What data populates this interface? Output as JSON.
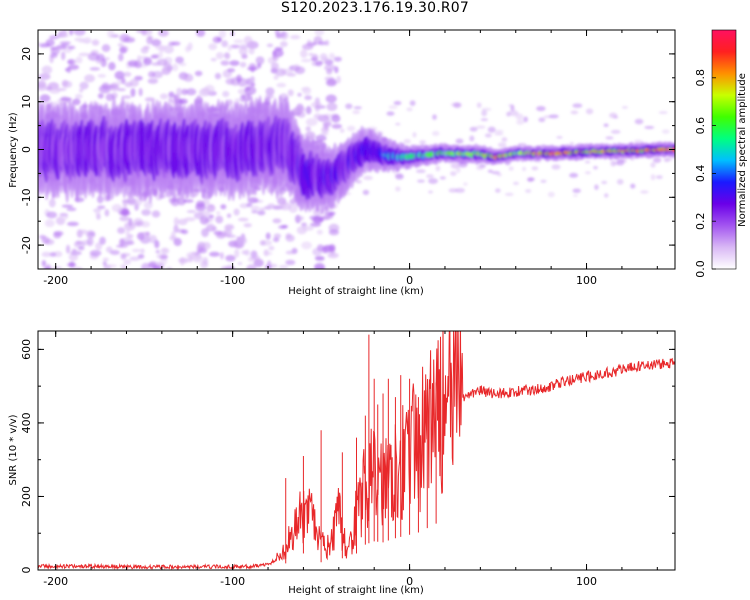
{
  "title": "S120.2023.176.19.30.R07",
  "chart_data": [
    {
      "type": "heatmap",
      "xlabel": "Height of straight line (km)",
      "ylabel": "Frequency (Hz)",
      "xlim": [
        -210,
        150
      ],
      "ylim": [
        -25,
        25
      ],
      "x_ticks": [
        "-200",
        "-100",
        "0",
        "100"
      ],
      "x_tick_values": [
        -200,
        -100,
        0,
        100
      ],
      "y_ticks": [
        "-20",
        "-10",
        "0",
        "10",
        "20"
      ],
      "y_tick_values": [
        -20,
        -10,
        0,
        10,
        20
      ],
      "colorbar": {
        "label": "Normalized spectral amplitude",
        "range": [
          0,
          1
        ],
        "ticks": [
          "0.0",
          "0.2",
          "0.4",
          "0.6",
          "0.8"
        ],
        "tick_values": [
          0,
          0.2,
          0.4,
          0.6,
          0.8
        ],
        "colormap": [
          "#ffffff",
          "#d9b8f5",
          "#a355f0",
          "#6a00e8",
          "#1a1aff",
          "#00bfff",
          "#00ff80",
          "#40ff00",
          "#c8ff00",
          "#ff9000",
          "#ff2020",
          "#ff1060"
        ]
      },
      "ridge": [
        {
          "x": -210,
          "freq": 0.0,
          "amp": 0.22,
          "width": 6
        },
        {
          "x": -150,
          "freq": 0.0,
          "amp": 0.25,
          "width": 6
        },
        {
          "x": -100,
          "freq": 0.0,
          "amp": 0.25,
          "width": 6
        },
        {
          "x": -70,
          "freq": 1.0,
          "amp": 0.27,
          "width": 6
        },
        {
          "x": -60,
          "freq": -5.0,
          "amp": 0.3,
          "width": 5
        },
        {
          "x": -45,
          "freq": -6.0,
          "amp": 0.3,
          "width": 4
        },
        {
          "x": -25,
          "freq": 0.0,
          "amp": 0.3,
          "width": 3
        },
        {
          "x": -10,
          "freq": -1.5,
          "amp": 0.45,
          "width": 2
        },
        {
          "x": 0,
          "freq": -1.5,
          "amp": 0.5,
          "width": 1.5
        },
        {
          "x": 20,
          "freq": -0.8,
          "amp": 0.6,
          "width": 1.2
        },
        {
          "x": 40,
          "freq": -1.0,
          "amp": 0.62,
          "width": 1.2
        },
        {
          "x": 50,
          "freq": -1.6,
          "amp": 0.75,
          "width": 1.0
        },
        {
          "x": 60,
          "freq": -0.8,
          "amp": 0.6,
          "width": 1.0
        },
        {
          "x": 80,
          "freq": -0.8,
          "amp": 0.82,
          "width": 1.0
        },
        {
          "x": 100,
          "freq": -0.5,
          "amp": 0.7,
          "width": 1.0
        },
        {
          "x": 150,
          "freq": 0.0,
          "amp": 0.8,
          "width": 1.0
        }
      ]
    },
    {
      "type": "line",
      "xlabel": "Height of straight line (km)",
      "ylabel": "SNR (10 * v/v)",
      "xlim": [
        -210,
        150
      ],
      "ylim": [
        0,
        650
      ],
      "x_ticks": [
        "-200",
        "-100",
        "0",
        "100"
      ],
      "x_tick_values": [
        -200,
        -100,
        0,
        100
      ],
      "y_ticks": [
        "0",
        "200",
        "400",
        "600"
      ],
      "y_tick_values": [
        0,
        200,
        400,
        600
      ],
      "color": "#e8282a",
      "series": [
        {
          "x": [
            -210,
            -180,
            -150,
            -120,
            -100,
            -90,
            -80,
            -75,
            -70,
            -65,
            -60,
            -55,
            -50,
            -45,
            -40,
            -35,
            -30,
            -25,
            -20,
            -15,
            -10,
            -5,
            0,
            5,
            10,
            15,
            20,
            25,
            30,
            35,
            40,
            45,
            50,
            60,
            70,
            80,
            90,
            100,
            110,
            120,
            130,
            140,
            150
          ],
          "y": [
            10,
            10,
            8,
            9,
            9,
            10,
            15,
            30,
            60,
            120,
            150,
            140,
            70,
            60,
            150,
            40,
            150,
            230,
            260,
            250,
            280,
            300,
            320,
            340,
            380,
            420,
            450,
            470,
            470,
            480,
            490,
            480,
            480,
            485,
            490,
            500,
            515,
            525,
            535,
            545,
            555,
            560,
            560
          ]
        }
      ],
      "spikes": [
        {
          "x": -70,
          "y": 250
        },
        {
          "x": -60,
          "y": 310
        },
        {
          "x": -50,
          "y": 380
        },
        {
          "x": -38,
          "y": 320
        },
        {
          "x": -30,
          "y": 360
        },
        {
          "x": -25,
          "y": 420
        },
        {
          "x": -23,
          "y": 640
        },
        {
          "x": -20,
          "y": 520
        },
        {
          "x": -18,
          "y": 450
        },
        {
          "x": -15,
          "y": 480
        },
        {
          "x": -12,
          "y": 520
        },
        {
          "x": -8,
          "y": 470
        },
        {
          "x": -5,
          "y": 530
        },
        {
          "x": 0,
          "y": 520
        },
        {
          "x": 5,
          "y": 470
        },
        {
          "x": 10,
          "y": 490
        },
        {
          "x": 15,
          "y": 510
        }
      ]
    }
  ]
}
